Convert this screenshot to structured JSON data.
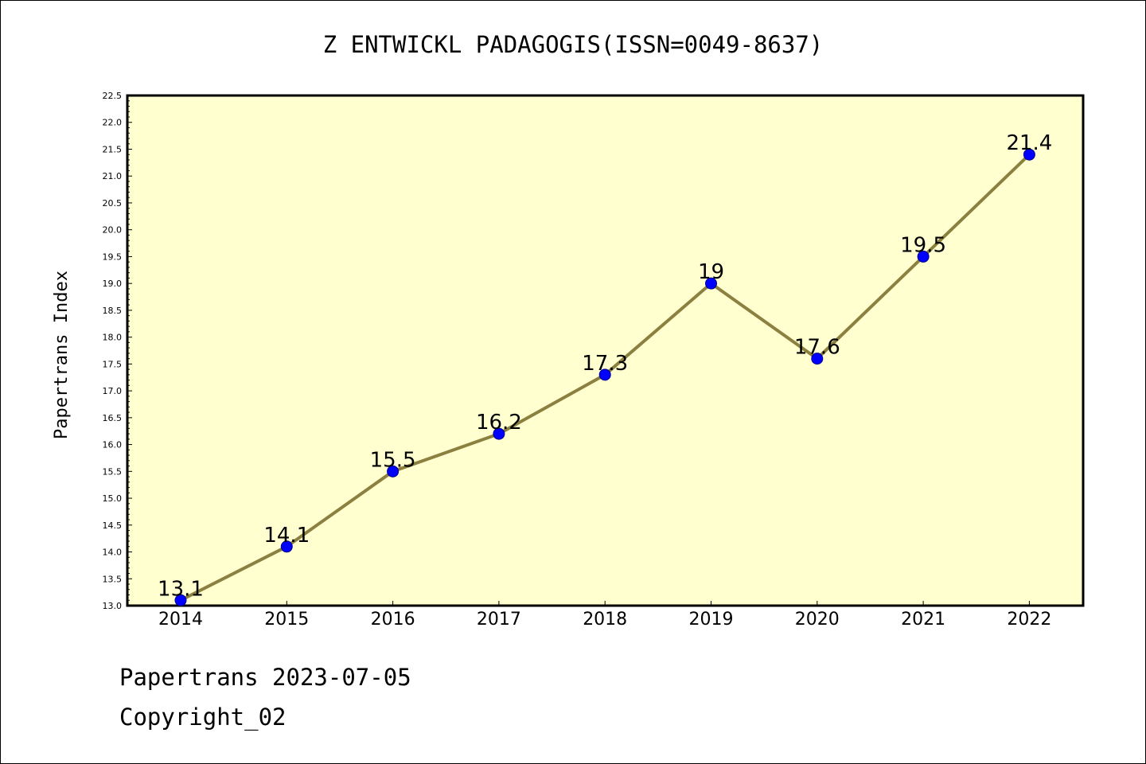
{
  "chart_data": {
    "type": "line",
    "title": "Z ENTWICKL PADAGOGIS(ISSN=0049-8637)",
    "xlabel": "",
    "ylabel": "Papertrans Index",
    "categories": [
      "2014",
      "2015",
      "2016",
      "2017",
      "2018",
      "2019",
      "2020",
      "2021",
      "2022"
    ],
    "series": [
      {
        "values": [
          13.1,
          14.1,
          15.5,
          16.2,
          17.3,
          19.0,
          17.6,
          19.5,
          21.4
        ],
        "labels": [
          "13.1",
          "14.1",
          "15.5",
          "16.2",
          "17.3",
          "19",
          "17.6",
          "19.5",
          "21.4"
        ]
      }
    ],
    "ylim": [
      13.0,
      22.5
    ],
    "yticks": [
      "13.0",
      "13.5",
      "14.0",
      "14.5",
      "15.0",
      "15.5",
      "16.0",
      "16.5",
      "17.0",
      "17.5",
      "18.0",
      "18.5",
      "19.0",
      "19.5",
      "20.0",
      "20.5",
      "21.0",
      "21.5",
      "22.0",
      "22.5"
    ],
    "grid": false,
    "colors": {
      "plot_background": "#ffffd0",
      "line": "#8b8040",
      "marker": "#0000ff",
      "marker_edge": "#00008b"
    }
  },
  "footer": {
    "line1": "Papertrans 2023-07-05",
    "line2": "Copyright_02"
  }
}
